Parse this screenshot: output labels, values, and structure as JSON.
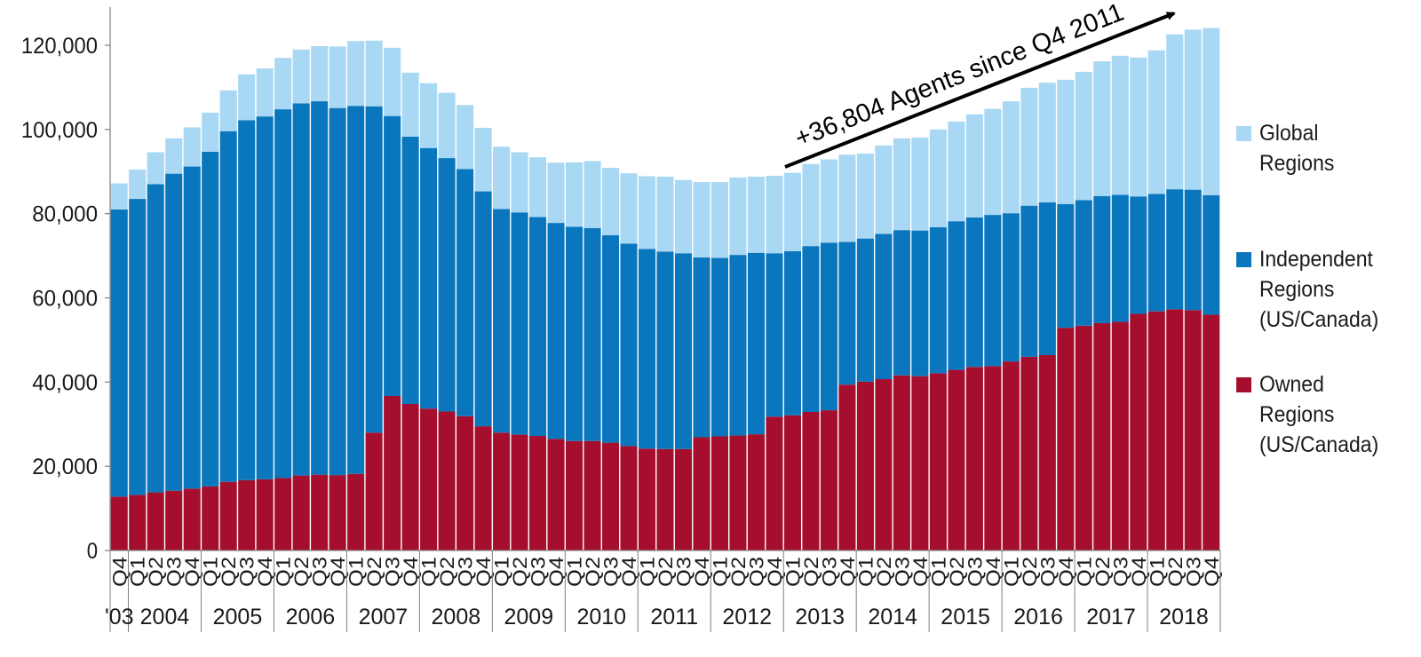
{
  "chart_data": {
    "type": "bar",
    "stacked": true,
    "title": "",
    "xlabel": "",
    "ylabel": "",
    "ylim": [
      0,
      125000
    ],
    "yticks": [
      0,
      20000,
      40000,
      60000,
      80000,
      100000,
      120000
    ],
    "ytick_labels": [
      "0",
      "20,000",
      "40,000",
      "60,000",
      "80,000",
      "100,000",
      "120,000"
    ],
    "quarter_labels": [
      "Q4",
      "Q1",
      "Q2",
      "Q3",
      "Q4",
      "Q1",
      "Q2",
      "Q3",
      "Q4",
      "Q1",
      "Q2",
      "Q3",
      "Q4",
      "Q1",
      "Q2",
      "Q3",
      "Q4",
      "Q1",
      "Q2",
      "Q3",
      "Q4",
      "Q1",
      "Q2",
      "Q3",
      "Q4",
      "Q1",
      "Q2",
      "Q3",
      "Q4",
      "Q1",
      "Q2",
      "Q3",
      "Q4",
      "Q1",
      "Q2",
      "Q3",
      "Q4",
      "Q1",
      "Q2",
      "Q3",
      "Q4",
      "Q1",
      "Q2",
      "Q3",
      "Q4",
      "Q1",
      "Q2",
      "Q3",
      "Q4",
      "Q1",
      "Q2",
      "Q3",
      "Q4",
      "Q1",
      "Q2",
      "Q3",
      "Q4",
      "Q1",
      "Q2",
      "Q3",
      "Q4"
    ],
    "year_groups": [
      {
        "label": "'03",
        "count": 1
      },
      {
        "label": "2004",
        "count": 4
      },
      {
        "label": "2005",
        "count": 4
      },
      {
        "label": "2006",
        "count": 4
      },
      {
        "label": "2007",
        "count": 4
      },
      {
        "label": "2008",
        "count": 4
      },
      {
        "label": "2009",
        "count": 4
      },
      {
        "label": "2010",
        "count": 4
      },
      {
        "label": "2011",
        "count": 4
      },
      {
        "label": "2012",
        "count": 4
      },
      {
        "label": "2013",
        "count": 4
      },
      {
        "label": "2014",
        "count": 4
      },
      {
        "label": "2015",
        "count": 4
      },
      {
        "label": "2016",
        "count": 4
      },
      {
        "label": "2017",
        "count": 4
      },
      {
        "label": "2018",
        "count": 4
      }
    ],
    "series": [
      {
        "name": "Owned Regions (US/Canada)",
        "color": "#a50f2d",
        "values": [
          12800,
          13200,
          13800,
          14200,
          14700,
          15200,
          16300,
          16700,
          16900,
          17200,
          17800,
          18000,
          17900,
          18200,
          28000,
          36700,
          34800,
          33700,
          33000,
          31900,
          29500,
          28000,
          27500,
          27200,
          26500,
          26000,
          26000,
          25600,
          24800,
          24200,
          24100,
          24100,
          26900,
          27100,
          27300,
          27600,
          31800,
          32100,
          32900,
          33300,
          39400,
          40100,
          40700,
          41600,
          41400,
          42100,
          42900,
          43600,
          43800,
          44900,
          46000,
          46400,
          52900,
          53400,
          54000,
          54300,
          56200,
          56800,
          57300,
          57100,
          56000
        ]
      },
      {
        "name": "Independent Regions (US/Canada)",
        "color": "#0a76bd",
        "values": [
          68200,
          70300,
          73200,
          75300,
          76500,
          79500,
          83300,
          85500,
          86200,
          87600,
          88400,
          88700,
          87200,
          87400,
          77500,
          66500,
          63500,
          61900,
          60200,
          58700,
          55800,
          53100,
          52800,
          52000,
          51300,
          50900,
          50600,
          49300,
          48100,
          47400,
          46900,
          46500,
          42700,
          42400,
          42900,
          43100,
          38800,
          39000,
          39400,
          39800,
          33900,
          34000,
          34500,
          34500,
          34600,
          34700,
          35300,
          35500,
          35900,
          35200,
          35900,
          36300,
          29400,
          29800,
          30200,
          30200,
          27900,
          27900,
          28500,
          28600,
          28400
        ]
      },
      {
        "name": "Global Regions",
        "color": "#a9d8f4",
        "values": [
          6200,
          7000,
          7600,
          8400,
          9300,
          9300,
          9700,
          10900,
          11400,
          12200,
          12800,
          13100,
          14600,
          15400,
          15600,
          16200,
          15200,
          15400,
          15500,
          15200,
          15100,
          14800,
          14300,
          14200,
          14300,
          15300,
          15900,
          16000,
          16700,
          17300,
          17800,
          17400,
          17900,
          18000,
          18400,
          18100,
          18400,
          18600,
          19500,
          19800,
          20700,
          20200,
          21000,
          21800,
          22100,
          23200,
          23700,
          24500,
          25200,
          26600,
          28000,
          28400,
          29500,
          30500,
          32000,
          33000,
          33000,
          34100,
          36800,
          38000,
          39700
        ]
      }
    ],
    "annotation": {
      "text": "+36,804 Agents since Q4 2011",
      "type": "arrow"
    },
    "legend": {
      "placement": "right",
      "entries": [
        {
          "series": 2,
          "lines": [
            "Global",
            "Regions"
          ]
        },
        {
          "series": 1,
          "lines": [
            "Independent",
            "Regions",
            "(US/Canada)"
          ]
        },
        {
          "series": 0,
          "lines": [
            "Owned",
            "Regions",
            "(US/Canada)"
          ]
        }
      ]
    },
    "grid": false
  }
}
